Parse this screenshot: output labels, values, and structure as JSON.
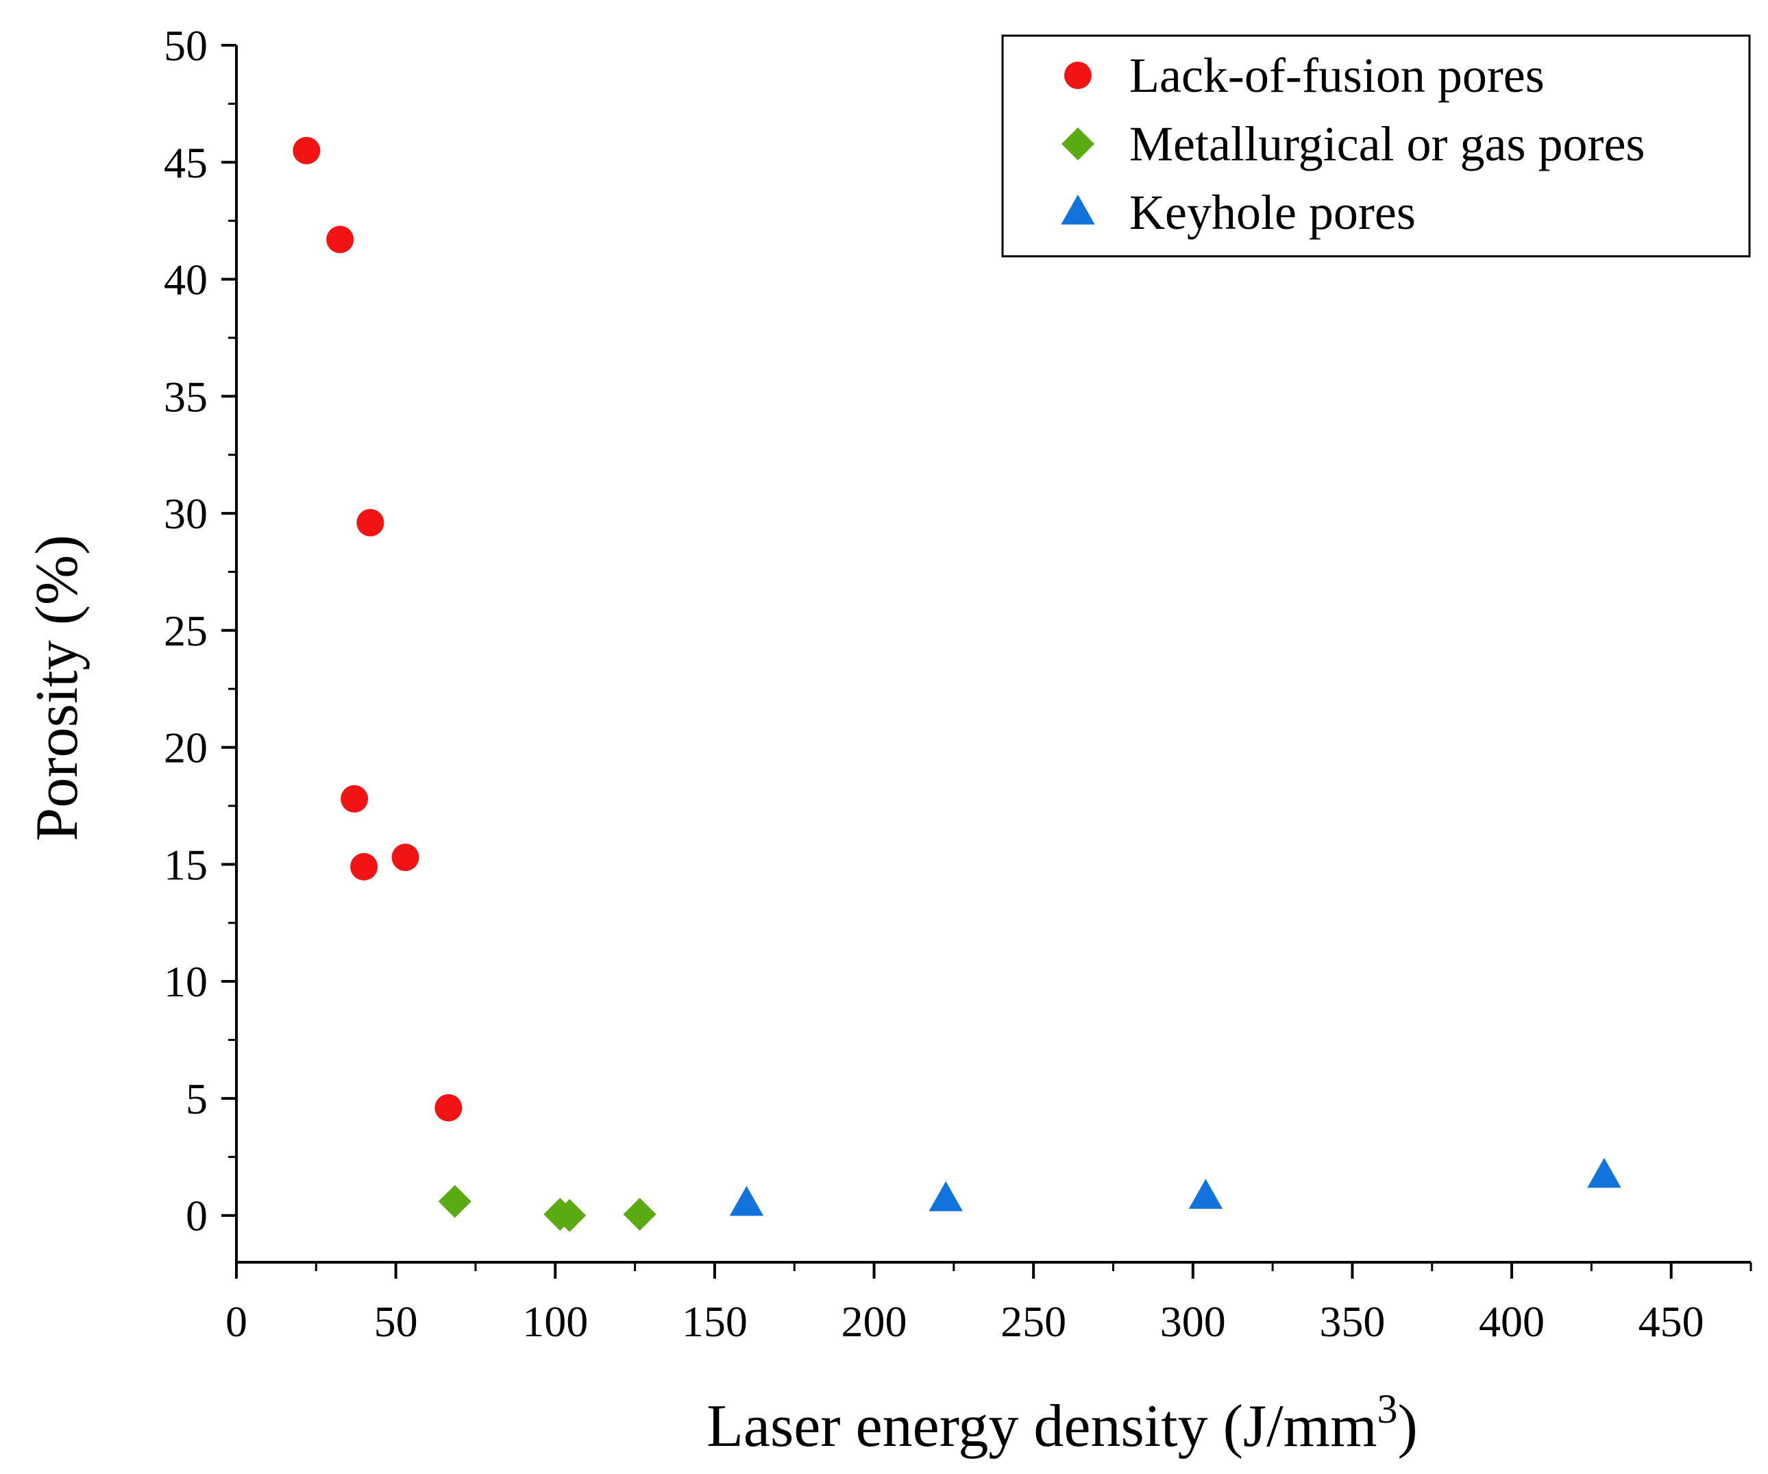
{
  "chart_data": {
    "type": "scatter",
    "title": "",
    "xlabel": "Laser energy density (J/mm",
    "xlabel_superscript": "3",
    "xlabel_suffix": ")",
    "ylabel": "Porosity (%)",
    "xlim": [
      0,
      475
    ],
    "ylim": [
      -2,
      50
    ],
    "xticks": [
      0,
      50,
      100,
      150,
      200,
      250,
      300,
      350,
      400,
      450
    ],
    "yticks": [
      0,
      5,
      10,
      15,
      20,
      25,
      30,
      35,
      40,
      45,
      50
    ],
    "xtick_labels": [
      "0",
      "50",
      "100",
      "150",
      "200",
      "250",
      "300",
      "350",
      "400",
      "450"
    ],
    "ytick_labels": [
      "0",
      "5",
      "10",
      "15",
      "20",
      "25",
      "30",
      "35",
      "40",
      "45",
      "50"
    ],
    "legend_position": "top-right",
    "series": [
      {
        "name": "Lack-of-fusion pores",
        "marker": "circle",
        "color": "#f21414",
        "points": [
          {
            "x": 22,
            "y": 45.5
          },
          {
            "x": 32.5,
            "y": 41.7
          },
          {
            "x": 42,
            "y": 29.6
          },
          {
            "x": 37,
            "y": 17.8
          },
          {
            "x": 40,
            "y": 14.9
          },
          {
            "x": 53,
            "y": 15.3
          },
          {
            "x": 66.5,
            "y": 4.6
          }
        ]
      },
      {
        "name": "Metallurgical or gas pores",
        "marker": "diamond",
        "color": "#5aaa14",
        "points": [
          {
            "x": 68.5,
            "y": 0.6
          },
          {
            "x": 101.5,
            "y": 0.05
          },
          {
            "x": 104.5,
            "y": 0.0
          },
          {
            "x": 126.5,
            "y": 0.05
          }
        ]
      },
      {
        "name": "Keyhole pores",
        "marker": "triangle",
        "color": "#1373dd",
        "points": [
          {
            "x": 160,
            "y": 0.5
          },
          {
            "x": 222.5,
            "y": 0.7
          },
          {
            "x": 304,
            "y": 0.8
          },
          {
            "x": 429,
            "y": 1.7
          }
        ]
      }
    ]
  }
}
